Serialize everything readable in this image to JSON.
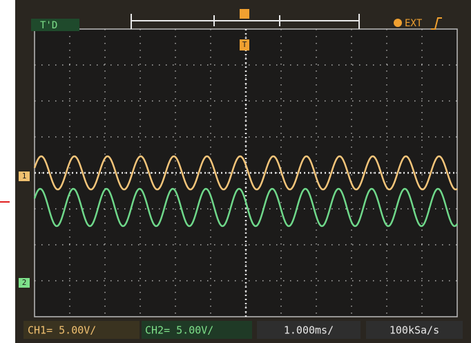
{
  "top_bar": {
    "mode": "T'D",
    "trigger_source": "EXT"
  },
  "markers": {
    "ch1": "1",
    "ch2": "2",
    "trigger": "T"
  },
  "status_bar": {
    "ch1": "CH1= 5.00V/",
    "ch2": "CH2= 5.00V/",
    "timebase": "1.000ms/",
    "sample_rate": "100kSa/s"
  }
}
